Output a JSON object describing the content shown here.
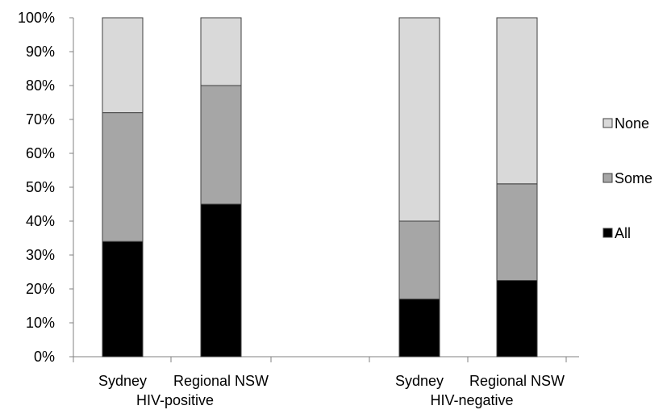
{
  "chart_data": {
    "type": "bar",
    "stacked": "percent",
    "categories": [
      "Sydney",
      "Regional NSW",
      "Sydney",
      "Regional NSW"
    ],
    "groups": [
      {
        "label": "HIV-positive",
        "categories": [
          0,
          1
        ]
      },
      {
        "label": "HIV-negative",
        "categories": [
          2,
          3
        ]
      }
    ],
    "series": [
      {
        "name": "All",
        "values": [
          34,
          45,
          17,
          22.5
        ],
        "color": "#000000"
      },
      {
        "name": "Some",
        "values": [
          38,
          35,
          23,
          28.5
        ],
        "color": "#a6a6a6"
      },
      {
        "name": "None",
        "values": [
          28,
          20,
          60,
          49
        ],
        "color": "#d9d9d9"
      }
    ],
    "yticks": [
      "0%",
      "10%",
      "20%",
      "30%",
      "40%",
      "50%",
      "60%",
      "70%",
      "80%",
      "90%",
      "100%"
    ],
    "ylim": [
      0,
      100
    ],
    "grid": false,
    "legend_position": "right",
    "legend_order": [
      "None",
      "Some",
      "All"
    ],
    "title": "",
    "xlabel": "",
    "ylabel": ""
  }
}
